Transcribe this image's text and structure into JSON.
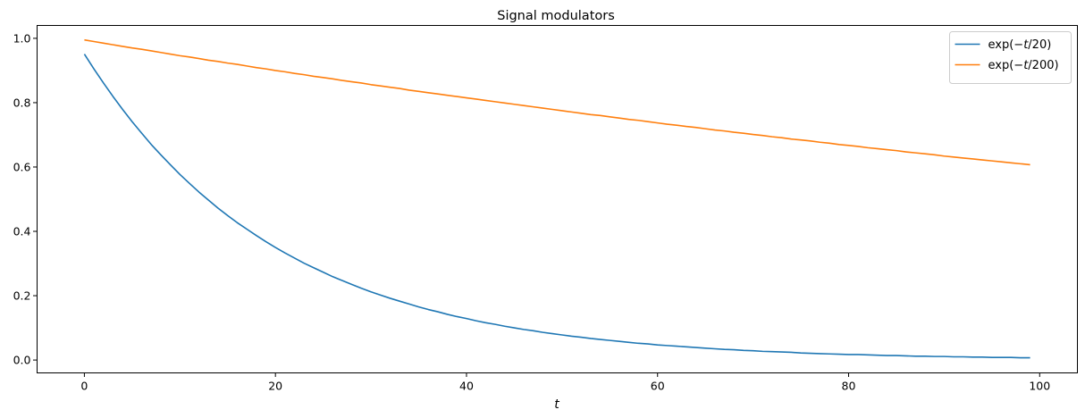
{
  "chart_data": {
    "type": "line",
    "title": "Signal modulators",
    "xlabel": "t",
    "ylabel": "",
    "xlim": [
      -4.95,
      103.95
    ],
    "ylim": [
      -0.04,
      1.04
    ],
    "xticks": [
      0,
      20,
      40,
      60,
      80,
      100
    ],
    "yticks": [
      0.0,
      0.2,
      0.4,
      0.6,
      0.8,
      1.0
    ],
    "xtick_labels": [
      "0",
      "20",
      "40",
      "60",
      "80",
      "100"
    ],
    "ytick_labels": [
      "0.0",
      "0.2",
      "0.4",
      "0.6",
      "0.8",
      "1.0"
    ],
    "grid": false,
    "legend_position": "top-right",
    "series": [
      {
        "name": "exp(−t/20)",
        "label_prefix": "exp(−",
        "label_var": "t",
        "label_suffix": "/20)",
        "color": "#1f77b4",
        "x_start": 0,
        "x_end": 99,
        "x_step": 1,
        "values": [
          0.951,
          0.905,
          0.861,
          0.819,
          0.779,
          0.741,
          0.705,
          0.67,
          0.638,
          0.607,
          0.577,
          0.549,
          0.522,
          0.497,
          0.472,
          0.449,
          0.427,
          0.407,
          0.387,
          0.368,
          0.35,
          0.333,
          0.317,
          0.301,
          0.287,
          0.273,
          0.259,
          0.247,
          0.235,
          0.223,
          0.212,
          0.202,
          0.192,
          0.183,
          0.174,
          0.165,
          0.157,
          0.15,
          0.142,
          0.135,
          0.129,
          0.122,
          0.116,
          0.111,
          0.105,
          0.1,
          0.095,
          0.091,
          0.086,
          0.082,
          0.078,
          0.074,
          0.071,
          0.067,
          0.064,
          0.061,
          0.058,
          0.055,
          0.052,
          0.05,
          0.047,
          0.045,
          0.043,
          0.041,
          0.039,
          0.037,
          0.035,
          0.033,
          0.032,
          0.03,
          0.029,
          0.027,
          0.026,
          0.025,
          0.024,
          0.022,
          0.021,
          0.02,
          0.019,
          0.018,
          0.017,
          0.017,
          0.016,
          0.015,
          0.014,
          0.014,
          0.013,
          0.012,
          0.012,
          0.011,
          0.011,
          0.01,
          0.01,
          0.009,
          0.009,
          0.008,
          0.008,
          0.008,
          0.007,
          0.007
        ]
      },
      {
        "name": "exp(−t/200)",
        "label_prefix": "exp(−",
        "label_var": "t",
        "label_suffix": "/200)",
        "color": "#ff7f0e",
        "x_start": 0,
        "x_end": 99,
        "x_step": 1,
        "values": [
          0.995,
          0.99,
          0.985,
          0.98,
          0.975,
          0.97,
          0.966,
          0.961,
          0.956,
          0.951,
          0.946,
          0.942,
          0.937,
          0.932,
          0.928,
          0.923,
          0.919,
          0.914,
          0.909,
          0.905,
          0.9,
          0.896,
          0.891,
          0.887,
          0.882,
          0.878,
          0.874,
          0.869,
          0.865,
          0.861,
          0.856,
          0.852,
          0.848,
          0.844,
          0.839,
          0.835,
          0.831,
          0.827,
          0.823,
          0.819,
          0.815,
          0.811,
          0.807,
          0.803,
          0.799,
          0.795,
          0.791,
          0.787,
          0.783,
          0.779,
          0.775,
          0.771,
          0.767,
          0.763,
          0.76,
          0.756,
          0.752,
          0.748,
          0.745,
          0.741,
          0.737,
          0.733,
          0.73,
          0.726,
          0.723,
          0.719,
          0.715,
          0.712,
          0.708,
          0.705,
          0.701,
          0.698,
          0.694,
          0.691,
          0.687,
          0.684,
          0.681,
          0.677,
          0.674,
          0.67,
          0.667,
          0.664,
          0.66,
          0.657,
          0.654,
          0.651,
          0.647,
          0.644,
          0.641,
          0.638,
          0.634,
          0.631,
          0.628,
          0.625,
          0.622,
          0.619,
          0.616,
          0.613,
          0.61,
          0.607
        ]
      }
    ]
  }
}
